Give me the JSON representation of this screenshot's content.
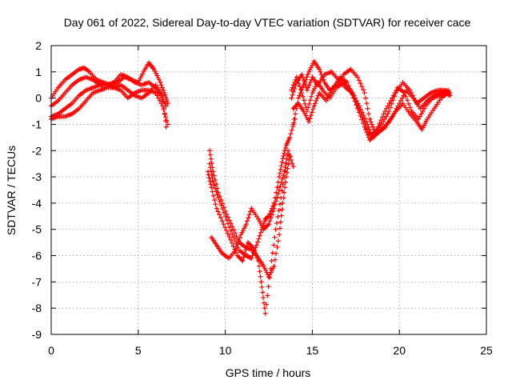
{
  "chart_data": {
    "type": "scatter",
    "title": "Day 061 of 2022, Sidereal Day-to-day VTEC variation (SDTVAR) for receiver cace",
    "xlabel": "GPS time / hours",
    "ylabel": "SDTVAR / TECUs",
    "xlim": [
      0,
      25
    ],
    "ylim": [
      -9,
      2
    ],
    "xticks": [
      "0",
      "5",
      "10",
      "15",
      "20",
      "25"
    ],
    "yticks": [
      "2",
      "1",
      "0",
      "-1",
      "-2",
      "-3",
      "-4",
      "-5",
      "-6",
      "-7",
      "-8",
      "-9"
    ],
    "grid": true,
    "marker": "+",
    "marker_color": "#ff0000",
    "series": [
      {
        "x": [
          0.0,
          0.4,
          0.8,
          1.2,
          1.6,
          1.9,
          2.2,
          2.6,
          3.0,
          3.4,
          3.8,
          4.2,
          4.6,
          5.0,
          5.3,
          5.6,
          5.9,
          6.2,
          6.5,
          6.7
        ],
        "y": [
          0.0,
          0.4,
          0.7,
          0.9,
          1.1,
          1.15,
          1.0,
          0.7,
          0.6,
          0.5,
          0.6,
          0.8,
          0.7,
          0.6,
          1.0,
          1.35,
          1.1,
          0.7,
          0.2,
          -0.2
        ]
      },
      {
        "x": [
          0.0,
          0.4,
          0.8,
          1.2,
          1.6,
          2.0,
          2.4,
          2.8,
          3.2,
          3.6,
          4.0,
          4.4,
          4.8,
          5.2,
          5.6,
          6.0,
          6.3,
          6.6
        ],
        "y": [
          -0.3,
          -0.1,
          0.2,
          0.5,
          0.7,
          0.8,
          0.7,
          0.5,
          0.5,
          0.6,
          0.9,
          0.8,
          0.6,
          0.5,
          0.6,
          0.4,
          0.1,
          -0.3
        ]
      },
      {
        "x": [
          0.0,
          0.4,
          0.8,
          1.2,
          1.6,
          2.0,
          2.4,
          2.8,
          3.2,
          3.6,
          4.0,
          4.4,
          4.8,
          5.2,
          5.6,
          6.0,
          6.4,
          6.7
        ],
        "y": [
          -0.7,
          -0.6,
          -0.4,
          -0.2,
          0.1,
          0.3,
          0.4,
          0.5,
          0.5,
          0.4,
          0.3,
          0.0,
          0.2,
          0.3,
          0.3,
          0.2,
          -0.3,
          -1.0
        ]
      },
      {
        "x": [
          0.0,
          0.4,
          0.8,
          1.2,
          1.6,
          2.0,
          2.4,
          2.8,
          3.2,
          3.6,
          4.0,
          4.4,
          4.8,
          5.2,
          5.6,
          6.0,
          6.4,
          6.6
        ],
        "y": [
          -0.8,
          -0.7,
          -0.7,
          -0.6,
          -0.4,
          -0.1,
          0.2,
          0.3,
          0.4,
          0.4,
          0.5,
          0.3,
          0.1,
          0.0,
          0.2,
          0.5,
          0.1,
          -1.1
        ]
      },
      {
        "x": [
          9.1,
          9.3,
          9.6,
          10.0,
          10.4,
          10.8,
          11.2,
          11.5,
          11.8,
          12.1,
          12.3,
          12.5,
          12.8,
          13.1,
          13.3,
          13.5,
          13.7,
          14.0
        ],
        "y": [
          -2.5,
          -3.2,
          -3.8,
          -4.5,
          -5.2,
          -5.8,
          -6.0,
          -6.1,
          -5.6,
          -5.0,
          -4.6,
          -4.5,
          -4.0,
          -3.0,
          -2.3,
          -1.8,
          -1.5,
          -0.8
        ]
      },
      {
        "x": [
          9.1,
          9.3,
          9.6,
          10.0,
          10.4,
          10.8,
          11.2,
          11.6,
          11.9,
          12.2,
          12.5,
          12.8,
          13.1,
          13.3,
          13.5,
          13.7
        ],
        "y": [
          -2.0,
          -2.8,
          -3.6,
          -4.3,
          -4.9,
          -5.5,
          -5.7,
          -5.8,
          -6.1,
          -6.4,
          -6.8,
          -6.4,
          -5.2,
          -4.0,
          -3.0,
          -2.2
        ]
      },
      {
        "x": [
          9.0,
          9.2,
          9.5,
          9.9,
          10.3,
          10.7,
          11.0,
          11.3,
          11.6,
          11.9,
          12.1,
          12.3,
          12.6,
          12.9,
          13.2,
          13.5
        ],
        "y": [
          -2.8,
          -3.4,
          -4.2,
          -4.8,
          -5.4,
          -6.0,
          -6.2,
          -5.5,
          -5.7,
          -6.2,
          -7.2,
          -8.2,
          -6.5,
          -5.0,
          -3.8,
          -2.5
        ]
      },
      {
        "x": [
          9.2,
          9.5,
          9.8,
          10.2,
          10.6,
          10.9,
          11.2,
          11.5,
          11.9,
          12.2,
          12.5,
          12.8,
          13.1,
          13.4,
          13.6,
          13.9
        ],
        "y": [
          -5.3,
          -5.6,
          -5.9,
          -6.1,
          -5.8,
          -5.2,
          -4.8,
          -4.2,
          -4.6,
          -5.0,
          -4.8,
          -4.2,
          -3.5,
          -2.8,
          -2.0,
          -2.6
        ]
      },
      {
        "x": [
          13.9,
          14.2,
          14.5,
          14.8,
          15.1,
          15.4,
          15.7,
          16.0,
          16.4,
          16.8,
          17.2,
          17.6,
          18.0,
          18.3,
          18.6,
          19.0,
          19.4,
          19.8,
          20.2,
          20.6,
          21.0,
          21.4,
          21.8,
          22.2,
          22.6,
          22.9
        ],
        "y": [
          -1.0,
          0.0,
          0.5,
          1.0,
          1.4,
          1.1,
          0.6,
          0.3,
          0.5,
          0.9,
          1.1,
          0.8,
          0.2,
          -0.8,
          -1.3,
          -1.0,
          -0.5,
          0.2,
          0.6,
          0.3,
          -0.2,
          0.0,
          0.2,
          0.3,
          0.3,
          0.2
        ]
      },
      {
        "x": [
          13.8,
          14.1,
          14.4,
          14.7,
          15.0,
          15.3,
          15.7,
          16.1,
          16.5,
          16.9,
          17.3,
          17.7,
          18.1,
          18.4,
          18.7,
          19.1,
          19.5,
          19.9,
          20.3,
          20.7,
          21.1,
          21.5,
          21.9,
          22.3,
          22.7,
          22.9
        ],
        "y": [
          0.0,
          0.6,
          0.9,
          0.3,
          0.8,
          0.5,
          0.9,
          1.0,
          0.7,
          0.4,
          0.2,
          -0.3,
          -0.9,
          -1.4,
          -1.2,
          -0.6,
          -0.1,
          0.4,
          0.2,
          -0.5,
          -0.8,
          -0.3,
          0.0,
          0.1,
          0.2,
          0.1
        ]
      },
      {
        "x": [
          13.8,
          14.1,
          14.4,
          14.7,
          15.0,
          15.3,
          15.6,
          16.0,
          16.4,
          16.8,
          17.2,
          17.6,
          18.0,
          18.3,
          18.6,
          19.0,
          19.4,
          19.8,
          20.2,
          20.6,
          21.0,
          21.3,
          21.6,
          22.0,
          22.4,
          22.8
        ],
        "y": [
          0.3,
          0.8,
          0.2,
          -0.5,
          0.2,
          0.6,
          0.3,
          0.0,
          0.4,
          0.6,
          0.3,
          -0.4,
          -1.1,
          -1.6,
          -1.4,
          -1.2,
          -0.9,
          -0.5,
          -0.2,
          -0.6,
          -0.9,
          -1.2,
          -0.8,
          -0.4,
          0.0,
          0.2
        ]
      },
      {
        "x": [
          13.9,
          14.2,
          14.5,
          14.8,
          15.1,
          15.4,
          15.8,
          16.2,
          16.6,
          17.0,
          17.4,
          17.8,
          18.2,
          18.5,
          18.8,
          19.2,
          19.6,
          20.0,
          20.4,
          20.8,
          21.2,
          21.6,
          22.0,
          22.4,
          22.8
        ],
        "y": [
          -0.4,
          -0.2,
          -0.5,
          -0.9,
          -0.3,
          0.2,
          -0.1,
          0.4,
          0.8,
          0.6,
          0.0,
          -0.6,
          -1.3,
          -1.5,
          -1.3,
          -1.1,
          -0.7,
          -0.2,
          0.3,
          0.0,
          -0.4,
          -0.1,
          0.1,
          0.2,
          0.3
        ]
      }
    ]
  }
}
